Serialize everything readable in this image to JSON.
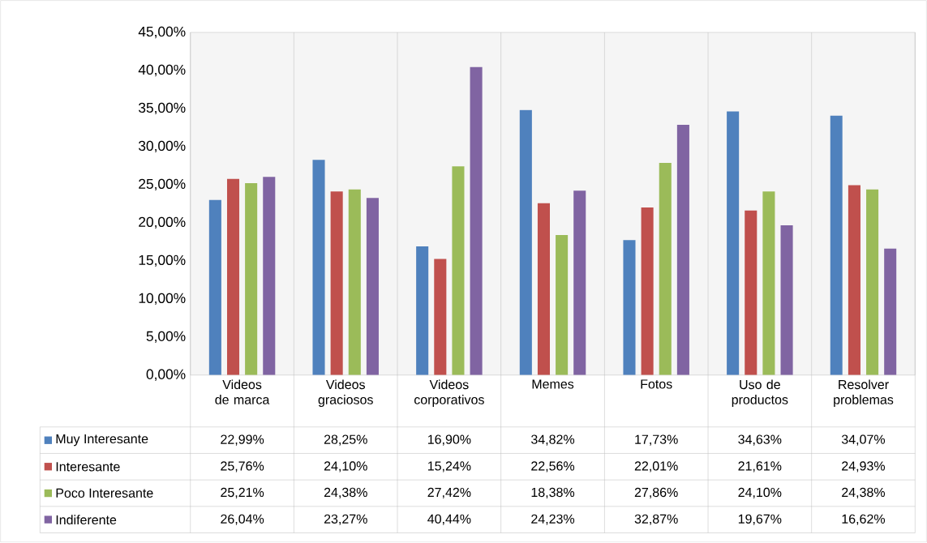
{
  "chart_data": {
    "type": "bar",
    "categories": [
      "Videos de marca",
      "Videos graciosos",
      "Videos corporativos",
      "Memes",
      "Fotos",
      "Uso de productos",
      "Resolver problemas"
    ],
    "series": [
      {
        "name": "Muy  Interesante",
        "color": "#4f81bd",
        "values": [
          22.99,
          28.25,
          16.9,
          34.82,
          17.73,
          34.63,
          34.07
        ],
        "value_labels": [
          "22,99%",
          "28,25%",
          "16,90%",
          "34,82%",
          "17,73%",
          "34,63%",
          "34,07%"
        ]
      },
      {
        "name": "Interesante",
        "color": "#c0504d",
        "values": [
          25.76,
          24.1,
          15.24,
          22.56,
          22.01,
          21.61,
          24.93
        ],
        "value_labels": [
          "25,76%",
          "24,10%",
          "15,24%",
          "22,56%",
          "22,01%",
          "21,61%",
          "24,93%"
        ]
      },
      {
        "name": "Poco Interesante",
        "color": "#9bbb59",
        "values": [
          25.21,
          24.38,
          27.42,
          18.38,
          27.86,
          24.1,
          24.38
        ],
        "value_labels": [
          "25,21%",
          "24,38%",
          "27,42%",
          "18,38%",
          "27,86%",
          "24,10%",
          "24,38%"
        ]
      },
      {
        "name": "Indiferente",
        "color": "#8064a2",
        "values": [
          26.04,
          23.27,
          40.44,
          24.23,
          32.87,
          19.67,
          16.62
        ],
        "value_labels": [
          "26,04%",
          "23,27%",
          "40,44%",
          "24,23%",
          "32,87%",
          "19,67%",
          "16,62%"
        ]
      }
    ],
    "ylim": [
      0,
      45
    ],
    "yticks": [
      {
        "value": 0,
        "label": "0,00%"
      },
      {
        "value": 5,
        "label": "5,00%"
      },
      {
        "value": 10,
        "label": "10,00%"
      },
      {
        "value": 15,
        "label": "15,00%"
      },
      {
        "value": 20,
        "label": "20,00%"
      },
      {
        "value": 25,
        "label": "25,00%"
      },
      {
        "value": 30,
        "label": "30,00%"
      },
      {
        "value": 35,
        "label": "35,00%"
      },
      {
        "value": 40,
        "label": "40,00%"
      },
      {
        "value": 45,
        "label": "45,00%"
      }
    ],
    "legend": "bottom"
  }
}
